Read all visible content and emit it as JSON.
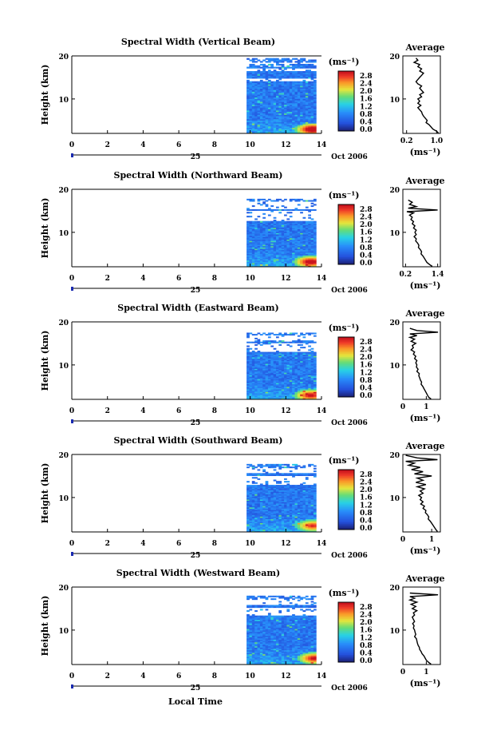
{
  "chart_data": [
    {
      "type": "heatmap",
      "title": "Spectral Width (Vertical Beam)",
      "ylabel": "Height (km)",
      "xlim": [
        0,
        14
      ],
      "ylim": [
        2,
        20
      ],
      "x_ticks": [
        "0",
        "2",
        "4",
        "6",
        "8",
        "10",
        "12",
        "14"
      ],
      "y_ticks": [
        "20",
        "10"
      ],
      "data_x_start": 9.8,
      "data_x_end": 13.7,
      "top_height": 19.5,
      "gaps": [
        [
          18.0,
          18.6
        ],
        [
          16.5,
          17.2
        ],
        [
          14.2,
          14.8
        ]
      ],
      "hotspot": {
        "x": 13.5,
        "y": 3.0,
        "value": 2.6
      },
      "date_label": "Oct 2006",
      "day_label": "25",
      "colorbar": {
        "unit": "(ms⁻¹)",
        "ticks": [
          "2.8",
          "2.4",
          "2.0",
          "1.6",
          "1.2",
          "0.8",
          "0.4",
          "0.0"
        ]
      },
      "average": {
        "title": "Average",
        "xlabel": "(ms⁻¹)",
        "xlim": [
          0.1,
          1.1
        ],
        "x_ticks": [
          "0.2",
          "1.0"
        ],
        "y_ticks": [
          "20",
          "10"
        ],
        "profile": [
          [
            0.45,
            19.5
          ],
          [
            0.5,
            19
          ],
          [
            0.4,
            18.5
          ],
          [
            0.55,
            18
          ],
          [
            0.5,
            17.5
          ],
          [
            0.6,
            17
          ],
          [
            0.55,
            16.5
          ],
          [
            0.65,
            16
          ],
          [
            0.6,
            15.5
          ],
          [
            0.55,
            15
          ],
          [
            0.5,
            14.5
          ],
          [
            0.45,
            14
          ],
          [
            0.5,
            13.5
          ],
          [
            0.6,
            13
          ],
          [
            0.55,
            12.5
          ],
          [
            0.6,
            12
          ],
          [
            0.65,
            11.5
          ],
          [
            0.55,
            11
          ],
          [
            0.6,
            10.5
          ],
          [
            0.5,
            10
          ],
          [
            0.55,
            9.5
          ],
          [
            0.5,
            9
          ],
          [
            0.58,
            8.5
          ],
          [
            0.5,
            8
          ],
          [
            0.55,
            7.5
          ],
          [
            0.6,
            7
          ],
          [
            0.62,
            6.5
          ],
          [
            0.65,
            6
          ],
          [
            0.7,
            5.5
          ],
          [
            0.75,
            5
          ],
          [
            0.72,
            4.5
          ],
          [
            0.8,
            4
          ],
          [
            0.85,
            3.5
          ],
          [
            0.9,
            3
          ],
          [
            1.0,
            2.5
          ],
          [
            1.05,
            2.1
          ]
        ]
      }
    },
    {
      "type": "heatmap",
      "title": "Spectral Width (Northward Beam)",
      "ylabel": "Height (km)",
      "xlim": [
        0,
        14
      ],
      "ylim": [
        2,
        20
      ],
      "x_ticks": [
        "0",
        "2",
        "4",
        "6",
        "8",
        "10",
        "12",
        "14"
      ],
      "y_ticks": [
        "20",
        "10"
      ],
      "data_x_start": 9.8,
      "data_x_end": 13.7,
      "top_height": 17.8,
      "gaps": [
        [
          15.5,
          17.2
        ],
        [
          12.5,
          15.0
        ]
      ],
      "hotspot": {
        "x": 13.4,
        "y": 3.2,
        "value": 2.4
      },
      "date_label": "Oct 2006",
      "day_label": "25",
      "colorbar": {
        "unit": "(ms⁻¹)",
        "ticks": [
          "2.8",
          "2.4",
          "2.0",
          "1.6",
          "1.2",
          "0.8",
          "0.4",
          "0.0"
        ]
      },
      "average": {
        "title": "Average",
        "xlabel": "(ms⁻¹)",
        "xlim": [
          0.1,
          1.5
        ],
        "x_ticks": [
          "0.2",
          "1.4"
        ],
        "y_ticks": [
          "20",
          "10"
        ],
        "profile": [
          [
            0.3,
            17.5
          ],
          [
            0.45,
            17
          ],
          [
            0.35,
            16.5
          ],
          [
            0.6,
            16
          ],
          [
            0.3,
            15.6
          ],
          [
            1.4,
            15.2
          ],
          [
            0.25,
            14.8
          ],
          [
            0.5,
            14.5
          ],
          [
            0.35,
            14
          ],
          [
            0.45,
            13.5
          ],
          [
            0.4,
            13
          ],
          [
            0.5,
            12.5
          ],
          [
            0.45,
            12
          ],
          [
            0.55,
            11.5
          ],
          [
            0.5,
            11
          ],
          [
            0.6,
            10.5
          ],
          [
            0.55,
            10
          ],
          [
            0.6,
            9.5
          ],
          [
            0.52,
            9
          ],
          [
            0.6,
            8.5
          ],
          [
            0.58,
            8
          ],
          [
            0.65,
            7.5
          ],
          [
            0.7,
            7
          ],
          [
            0.68,
            6.5
          ],
          [
            0.75,
            6
          ],
          [
            0.8,
            5.5
          ],
          [
            0.78,
            5
          ],
          [
            0.85,
            4.5
          ],
          [
            0.9,
            4
          ],
          [
            0.95,
            3.5
          ],
          [
            1.0,
            3
          ],
          [
            1.1,
            2.5
          ],
          [
            1.2,
            2.1
          ]
        ]
      }
    },
    {
      "type": "heatmap",
      "title": "Spectral Width (Eastward Beam)",
      "ylabel": "Height (km)",
      "xlim": [
        0,
        14
      ],
      "ylim": [
        2,
        20
      ],
      "x_ticks": [
        "0",
        "2",
        "4",
        "6",
        "8",
        "10",
        "12",
        "14"
      ],
      "y_ticks": [
        "20",
        "10"
      ],
      "data_x_start": 9.8,
      "data_x_end": 13.7,
      "top_height": 17.5,
      "gaps": [
        [
          15.6,
          16.8
        ],
        [
          13.0,
          15.0
        ]
      ],
      "hotspot": {
        "x": 13.4,
        "y": 3.0,
        "value": 2.2
      },
      "date_label": "Oct 2006",
      "day_label": "25",
      "colorbar": {
        "unit": "(ms⁻¹)",
        "ticks": [
          "2.8",
          "2.4",
          "2.0",
          "1.6",
          "1.2",
          "0.8",
          "0.4",
          "0.0"
        ]
      },
      "average": {
        "title": "Average",
        "xlabel": "(ms⁻¹)",
        "xlim": [
          0,
          1.6
        ],
        "x_ticks": [
          "0",
          "1"
        ],
        "y_ticks": [
          "20",
          "10"
        ],
        "profile": [
          [
            0.3,
            18.5
          ],
          [
            0.6,
            18
          ],
          [
            1.5,
            17.6
          ],
          [
            0.3,
            17.2
          ],
          [
            0.6,
            16.8
          ],
          [
            0.3,
            16.4
          ],
          [
            0.5,
            16
          ],
          [
            0.35,
            15.5
          ],
          [
            0.55,
            15
          ],
          [
            0.4,
            14.5
          ],
          [
            0.45,
            14
          ],
          [
            0.35,
            13.5
          ],
          [
            0.5,
            13
          ],
          [
            0.45,
            12.5
          ],
          [
            0.55,
            12
          ],
          [
            0.5,
            11.5
          ],
          [
            0.6,
            11
          ],
          [
            0.55,
            10.5
          ],
          [
            0.6,
            10
          ],
          [
            0.58,
            9.5
          ],
          [
            0.65,
            9
          ],
          [
            0.6,
            8.5
          ],
          [
            0.7,
            8
          ],
          [
            0.68,
            7.5
          ],
          [
            0.72,
            7
          ],
          [
            0.75,
            6.5
          ],
          [
            0.8,
            6
          ],
          [
            0.78,
            5.5
          ],
          [
            0.85,
            5
          ],
          [
            0.9,
            4.5
          ],
          [
            0.95,
            4
          ],
          [
            1.0,
            3.5
          ],
          [
            1.05,
            3
          ],
          [
            1.1,
            2.5
          ],
          [
            1.2,
            2.1
          ]
        ]
      }
    },
    {
      "type": "heatmap",
      "title": "Spectral Width (Southward Beam)",
      "ylabel": "Height (km)",
      "xlim": [
        0,
        14
      ],
      "ylim": [
        2,
        20
      ],
      "x_ticks": [
        "0",
        "2",
        "4",
        "6",
        "8",
        "10",
        "12",
        "14"
      ],
      "y_ticks": [
        "20",
        "10"
      ],
      "data_x_start": 9.8,
      "data_x_end": 13.7,
      "top_height": 17.8,
      "gaps": [
        [
          15.8,
          17.0
        ],
        [
          12.8,
          15.2
        ]
      ],
      "hotspot": {
        "x": 13.5,
        "y": 3.5,
        "value": 2.0
      },
      "date_label": "Oct 2006",
      "day_label": "25",
      "colorbar": {
        "unit": "(ms⁻¹)",
        "ticks": [
          "2.8",
          "2.4",
          "2.0",
          "1.6",
          "1.2",
          "0.8",
          "0.4",
          "0.0"
        ]
      },
      "average": {
        "title": "Average",
        "xlabel": "(ms⁻¹)",
        "xlim": [
          0,
          1.3
        ],
        "x_ticks": [
          "0",
          "1"
        ],
        "y_ticks": [
          "20",
          "10"
        ],
        "profile": [
          [
            0.1,
            19.8
          ],
          [
            0.5,
            19.2
          ],
          [
            1.2,
            18.8
          ],
          [
            0.1,
            18.4
          ],
          [
            0.4,
            18
          ],
          [
            0.2,
            17.5
          ],
          [
            0.6,
            17
          ],
          [
            0.3,
            16.5
          ],
          [
            0.7,
            16
          ],
          [
            0.4,
            15.5
          ],
          [
            1.0,
            15
          ],
          [
            0.5,
            14.5
          ],
          [
            0.7,
            14
          ],
          [
            0.45,
            13.5
          ],
          [
            0.8,
            13
          ],
          [
            0.5,
            12.5
          ],
          [
            0.75,
            12
          ],
          [
            0.6,
            11.5
          ],
          [
            0.7,
            11
          ],
          [
            0.55,
            10.5
          ],
          [
            0.65,
            10
          ],
          [
            0.6,
            9.5
          ],
          [
            0.7,
            9
          ],
          [
            0.62,
            8.5
          ],
          [
            0.75,
            8
          ],
          [
            0.7,
            7.5
          ],
          [
            0.8,
            7
          ],
          [
            0.78,
            6.5
          ],
          [
            0.85,
            6
          ],
          [
            0.9,
            5.5
          ],
          [
            0.88,
            5
          ],
          [
            0.95,
            4.5
          ],
          [
            1.0,
            4
          ],
          [
            1.05,
            3.5
          ],
          [
            1.1,
            3
          ],
          [
            1.15,
            2.5
          ],
          [
            1.2,
            2.1
          ]
        ]
      }
    },
    {
      "type": "heatmap",
      "title": "Spectral Width (Westward Beam)",
      "ylabel": "Height (km)",
      "xlim": [
        0,
        14
      ],
      "ylim": [
        2,
        20
      ],
      "x_ticks": [
        "0",
        "2",
        "4",
        "6",
        "8",
        "10",
        "12",
        "14"
      ],
      "y_ticks": [
        "20",
        "10"
      ],
      "data_x_start": 9.8,
      "data_x_end": 13.7,
      "top_height": 18.0,
      "gaps": [
        [
          16.0,
          17.2
        ],
        [
          13.5,
          15.2
        ]
      ],
      "hotspot": {
        "x": 13.6,
        "y": 3.5,
        "value": 2.2
      },
      "date_label": "Oct 2006",
      "day_label": "25",
      "xlabel": "Local Time",
      "colorbar": {
        "unit": "(ms⁻¹)",
        "ticks": [
          "2.8",
          "2.4",
          "2.0",
          "1.6",
          "1.2",
          "0.8",
          "0.4",
          "0.0"
        ]
      },
      "average": {
        "title": "Average",
        "xlabel": "(ms⁻¹)",
        "xlim": [
          0,
          1.6
        ],
        "x_ticks": [
          "0",
          "1"
        ],
        "y_ticks": [
          "20",
          "10"
        ],
        "profile": [
          [
            0.3,
            18.6
          ],
          [
            1.5,
            18.2
          ],
          [
            0.3,
            17.8
          ],
          [
            0.5,
            17.4
          ],
          [
            0.3,
            17
          ],
          [
            0.6,
            16.5
          ],
          [
            0.35,
            16
          ],
          [
            0.55,
            15.5
          ],
          [
            0.4,
            15
          ],
          [
            0.6,
            14.5
          ],
          [
            0.45,
            14
          ],
          [
            0.5,
            13.5
          ],
          [
            0.4,
            13
          ],
          [
            0.45,
            12.5
          ],
          [
            0.5,
            12
          ],
          [
            0.42,
            11.5
          ],
          [
            0.48,
            11
          ],
          [
            0.45,
            10.5
          ],
          [
            0.5,
            10
          ],
          [
            0.52,
            9.5
          ],
          [
            0.55,
            9
          ],
          [
            0.5,
            8.5
          ],
          [
            0.58,
            8
          ],
          [
            0.6,
            7.5
          ],
          [
            0.62,
            7
          ],
          [
            0.65,
            6.5
          ],
          [
            0.7,
            6
          ],
          [
            0.72,
            5.5
          ],
          [
            0.78,
            5
          ],
          [
            0.82,
            4.5
          ],
          [
            0.9,
            4
          ],
          [
            0.95,
            3.5
          ],
          [
            1.0,
            3
          ],
          [
            1.1,
            2.5
          ],
          [
            1.2,
            2.1
          ]
        ]
      }
    }
  ]
}
